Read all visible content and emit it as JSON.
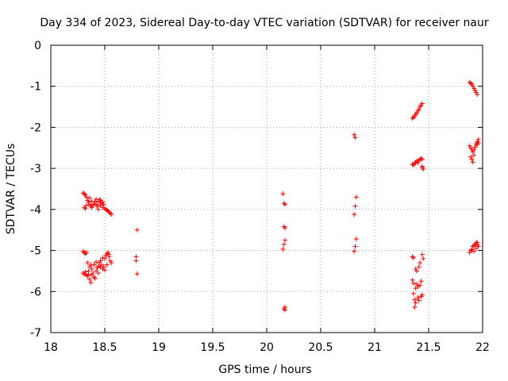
{
  "chart_data": {
    "type": "scatter",
    "title": "Day 334 of 2023, Sidereal Day-to-day VTEC variation (SDTVAR) for receiver naur",
    "xlabel": "GPS time / hours",
    "ylabel": "SDTVAR / TECUs",
    "xlim": [
      18,
      22
    ],
    "ylim": [
      -7,
      0
    ],
    "xticks": [
      "18",
      "18.5",
      "19",
      "19.5",
      "20",
      "20.5",
      "21",
      "21.5",
      "22"
    ],
    "yticks": [
      "0",
      "-1",
      "-2",
      "-3",
      "-4",
      "-5",
      "-6",
      "-7"
    ],
    "grid": true,
    "marker": "+",
    "color": "#ff0000",
    "series": [
      {
        "name": "SDTVAR",
        "points": [
          [
            18.3,
            -3.6
          ],
          [
            18.31,
            -3.62
          ],
          [
            18.32,
            -3.65
          ],
          [
            18.33,
            -3.7
          ],
          [
            18.34,
            -3.78
          ],
          [
            18.35,
            -3.82
          ],
          [
            18.36,
            -3.88
          ],
          [
            18.37,
            -3.92
          ],
          [
            18.38,
            -3.95
          ],
          [
            18.39,
            -3.9
          ],
          [
            18.4,
            -3.85
          ],
          [
            18.41,
            -3.8
          ],
          [
            18.42,
            -3.88
          ],
          [
            18.43,
            -3.92
          ],
          [
            18.44,
            -3.82
          ],
          [
            18.45,
            -3.76
          ],
          [
            18.46,
            -3.9
          ],
          [
            18.47,
            -3.85
          ],
          [
            18.48,
            -3.95
          ],
          [
            18.49,
            -3.88
          ],
          [
            18.5,
            -3.98
          ],
          [
            18.51,
            -4.0
          ],
          [
            18.52,
            -4.02
          ],
          [
            18.53,
            -4.04
          ],
          [
            18.54,
            -4.06
          ],
          [
            18.55,
            -4.09
          ],
          [
            18.56,
            -4.12
          ],
          [
            18.31,
            -3.95
          ],
          [
            18.32,
            -3.98
          ],
          [
            18.33,
            -3.9
          ],
          [
            18.36,
            -3.72
          ],
          [
            18.38,
            -3.8
          ],
          [
            18.42,
            -3.75
          ],
          [
            18.44,
            -4.0
          ],
          [
            18.46,
            -3.78
          ],
          [
            18.48,
            -3.82
          ],
          [
            18.3,
            -5.02
          ],
          [
            18.31,
            -5.05
          ],
          [
            18.32,
            -5.08
          ],
          [
            18.33,
            -5.05
          ],
          [
            18.3,
            -5.55
          ],
          [
            18.31,
            -5.58
          ],
          [
            18.32,
            -5.52
          ],
          [
            18.33,
            -5.6
          ],
          [
            18.34,
            -5.62
          ],
          [
            18.35,
            -5.5
          ],
          [
            18.36,
            -5.4
          ],
          [
            18.37,
            -5.35
          ],
          [
            18.38,
            -5.45
          ],
          [
            18.39,
            -5.55
          ],
          [
            18.4,
            -5.65
          ],
          [
            18.41,
            -5.68
          ],
          [
            18.42,
            -5.5
          ],
          [
            18.43,
            -5.42
          ],
          [
            18.44,
            -5.38
          ],
          [
            18.45,
            -5.3
          ],
          [
            18.46,
            -5.25
          ],
          [
            18.47,
            -5.35
          ],
          [
            18.48,
            -5.45
          ],
          [
            18.49,
            -5.4
          ],
          [
            18.5,
            -5.2
          ],
          [
            18.51,
            -5.12
          ],
          [
            18.52,
            -5.08
          ],
          [
            18.53,
            -5.05
          ],
          [
            18.54,
            -5.15
          ],
          [
            18.55,
            -5.25
          ],
          [
            18.56,
            -5.3
          ],
          [
            18.36,
            -5.7
          ],
          [
            18.37,
            -5.78
          ],
          [
            18.34,
            -5.3
          ],
          [
            18.35,
            -5.58
          ],
          [
            18.38,
            -5.6
          ],
          [
            18.4,
            -5.35
          ],
          [
            18.42,
            -5.28
          ],
          [
            18.44,
            -5.55
          ],
          [
            18.46,
            -5.4
          ],
          [
            18.48,
            -5.18
          ],
          [
            18.5,
            -5.48
          ],
          [
            18.52,
            -5.35
          ],
          [
            18.54,
            -5.1
          ],
          [
            18.8,
            -4.5
          ],
          [
            18.79,
            -5.15
          ],
          [
            18.79,
            -5.25
          ],
          [
            18.8,
            -5.57
          ],
          [
            20.15,
            -3.62
          ],
          [
            20.16,
            -3.85
          ],
          [
            20.17,
            -3.88
          ],
          [
            20.16,
            -4.42
          ],
          [
            20.17,
            -4.45
          ],
          [
            20.17,
            -4.75
          ],
          [
            20.16,
            -4.85
          ],
          [
            20.15,
            -4.97
          ],
          [
            20.16,
            -6.42
          ],
          [
            20.17,
            -6.45
          ],
          [
            20.17,
            -6.38
          ],
          [
            20.81,
            -2.18
          ],
          [
            20.82,
            -2.25
          ],
          [
            20.83,
            -3.7
          ],
          [
            20.82,
            -3.92
          ],
          [
            20.81,
            -4.12
          ],
          [
            20.83,
            -4.72
          ],
          [
            20.82,
            -4.9
          ],
          [
            20.81,
            -5.02
          ],
          [
            21.35,
            -1.78
          ],
          [
            21.36,
            -1.76
          ],
          [
            21.37,
            -1.72
          ],
          [
            21.38,
            -1.68
          ],
          [
            21.39,
            -1.65
          ],
          [
            21.4,
            -1.6
          ],
          [
            21.41,
            -1.56
          ],
          [
            21.42,
            -1.5
          ],
          [
            21.43,
            -1.46
          ],
          [
            21.44,
            -1.42
          ],
          [
            21.35,
            -2.9
          ],
          [
            21.36,
            -2.92
          ],
          [
            21.37,
            -2.88
          ],
          [
            21.38,
            -2.85
          ],
          [
            21.39,
            -2.82
          ],
          [
            21.4,
            -2.86
          ],
          [
            21.41,
            -2.8
          ],
          [
            21.42,
            -2.78
          ],
          [
            21.43,
            -2.76
          ],
          [
            21.44,
            -2.78
          ],
          [
            21.44,
            -2.95
          ],
          [
            21.45,
            -3.02
          ],
          [
            21.44,
            -2.98
          ],
          [
            21.35,
            -5.15
          ],
          [
            21.36,
            -5.18
          ],
          [
            21.35,
            -5.72
          ],
          [
            21.36,
            -6.05
          ],
          [
            21.37,
            -6.38
          ],
          [
            21.38,
            -6.28
          ],
          [
            21.38,
            -5.45
          ],
          [
            21.39,
            -5.5
          ],
          [
            21.39,
            -5.82
          ],
          [
            21.4,
            -5.88
          ],
          [
            21.4,
            -6.15
          ],
          [
            21.41,
            -6.22
          ],
          [
            21.41,
            -5.4
          ],
          [
            21.42,
            -5.3
          ],
          [
            21.42,
            -5.85
          ],
          [
            21.43,
            -5.75
          ],
          [
            21.43,
            -6.12
          ],
          [
            21.44,
            -6.08
          ],
          [
            21.44,
            -5.1
          ],
          [
            21.45,
            -5.2
          ],
          [
            21.36,
            -5.8
          ],
          [
            21.37,
            -6.2
          ],
          [
            21.38,
            -5.92
          ],
          [
            21.88,
            -0.9
          ],
          [
            21.89,
            -0.93
          ],
          [
            21.9,
            -0.95
          ],
          [
            21.91,
            -1.0
          ],
          [
            21.92,
            -1.05
          ],
          [
            21.93,
            -1.1
          ],
          [
            21.94,
            -1.15
          ],
          [
            21.95,
            -1.2
          ],
          [
            21.88,
            -2.45
          ],
          [
            21.89,
            -2.5
          ],
          [
            21.9,
            -2.55
          ],
          [
            21.91,
            -2.6
          ],
          [
            21.92,
            -2.55
          ],
          [
            21.93,
            -2.48
          ],
          [
            21.94,
            -2.4
          ],
          [
            21.95,
            -2.35
          ],
          [
            21.96,
            -2.3
          ],
          [
            21.95,
            -2.42
          ],
          [
            21.89,
            -2.72
          ],
          [
            21.9,
            -2.78
          ],
          [
            21.91,
            -2.85
          ],
          [
            21.92,
            -2.68
          ],
          [
            21.96,
            -2.38
          ],
          [
            21.88,
            -5.05
          ],
          [
            21.89,
            -5.0
          ],
          [
            21.9,
            -4.98
          ],
          [
            21.91,
            -4.9
          ],
          [
            21.92,
            -4.88
          ],
          [
            21.93,
            -4.85
          ],
          [
            21.94,
            -4.82
          ],
          [
            21.95,
            -4.86
          ],
          [
            21.96,
            -4.9
          ],
          [
            21.94,
            -4.95
          ],
          [
            21.92,
            -5.02
          ],
          [
            21.95,
            -4.8
          ]
        ]
      }
    ]
  }
}
